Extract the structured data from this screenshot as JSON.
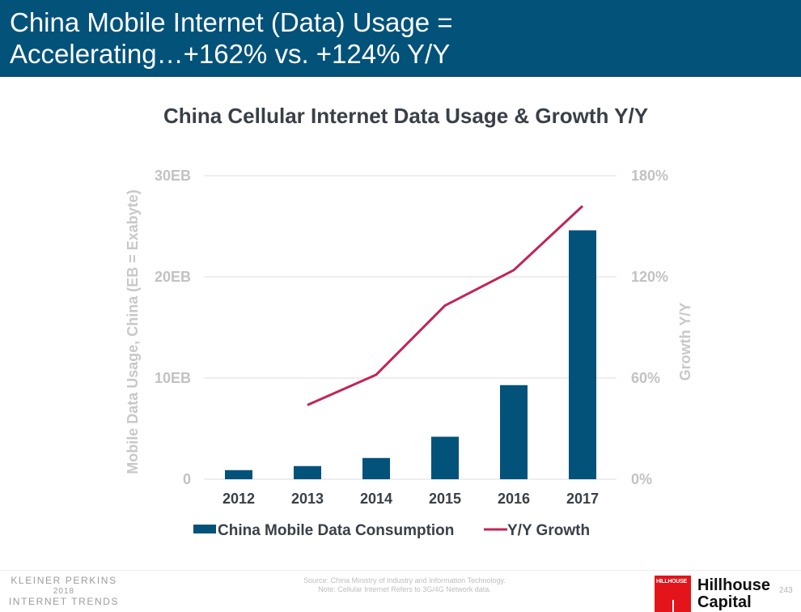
{
  "header": {
    "title": "China Mobile Internet (Data) Usage =\nAccelerating…+162% vs. +124% Y/Y"
  },
  "colors": {
    "header_bg": "#02527a",
    "bar": "#02527a",
    "line": "#c0245a",
    "gridline": "#dddddd"
  },
  "chart_data": {
    "type": "bar",
    "title": "China Cellular Internet Data Usage & Growth Y/Y",
    "categories": [
      "2012",
      "2013",
      "2014",
      "2015",
      "2016",
      "2017"
    ],
    "series": [
      {
        "name": "China Mobile Data Consumption",
        "type": "bar",
        "axis": "left",
        "unit": "EB",
        "values": [
          0.9,
          1.3,
          2.1,
          4.2,
          9.3,
          24.6
        ]
      },
      {
        "name": "Y/Y Growth",
        "type": "line",
        "axis": "right",
        "unit": "%",
        "values": [
          null,
          44,
          62,
          103,
          124,
          162
        ]
      }
    ],
    "ylabel": "Mobile Data Usage, China (EB = Exabyte)",
    "ylabel_right": "Growth Y/Y",
    "ylim": [
      0,
      30
    ],
    "ylim_right": [
      0,
      180
    ],
    "yticks": [
      "0",
      "10EB",
      "20EB",
      "30EB"
    ],
    "yticks_right": [
      "0%",
      "60%",
      "120%",
      "180%"
    ],
    "grid": true,
    "legend_position": "bottom"
  },
  "footer": {
    "kp_line1": "KLEINER PERKINS",
    "kp_line2": "2018",
    "kp_line3": "INTERNET TRENDS",
    "source_line1": "Source: China Ministry of Industry and Information Technology.",
    "source_line2": "Note: Cellular Internet Refers to 3G/4G Network data.",
    "logo_text": "HILLHOUSE",
    "hillhouse_line1": "Hillhouse",
    "hillhouse_line2": "Capital",
    "page_number": "243"
  }
}
